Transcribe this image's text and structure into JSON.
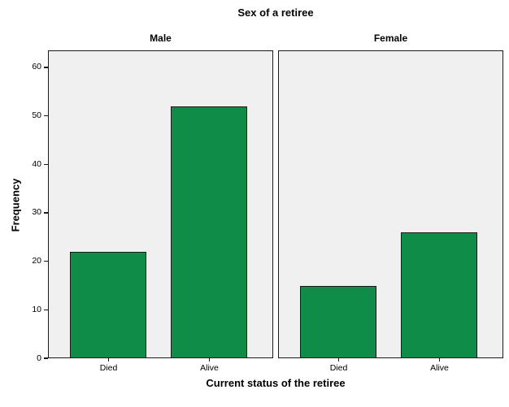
{
  "chart_data": {
    "type": "bar",
    "title": "Sex of a retiree",
    "xlabel": "Current status of the retiree",
    "ylabel": "Frequency",
    "categories": [
      "Died",
      "Alive"
    ],
    "facets": [
      {
        "label": "Male",
        "values": [
          22,
          52
        ]
      },
      {
        "label": "Female",
        "values": [
          15,
          26
        ]
      }
    ],
    "yticks": [
      0,
      10,
      20,
      30,
      40,
      50,
      60
    ],
    "ylim": [
      0,
      63.5
    ],
    "grid": false,
    "legend": "none",
    "colors": {
      "bar_fill": "#0f8c48",
      "bar_border": "#1a1a1a",
      "panel_bg": "#f0f0f0",
      "panel_border": "#1a1a1a",
      "background": "#ffffff",
      "text": "#000000"
    }
  }
}
